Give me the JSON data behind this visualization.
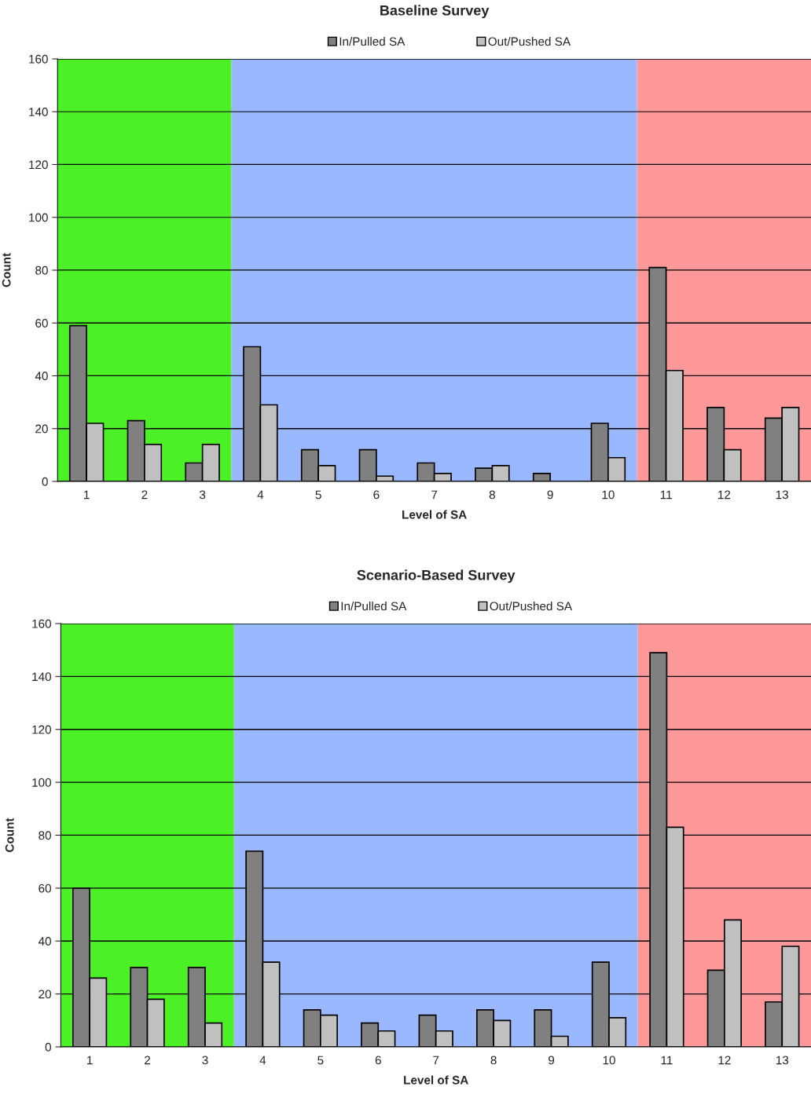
{
  "chart_data": [
    {
      "type": "bar",
      "title": "Baseline Survey",
      "xlabel": "Level of SA",
      "ylabel": "Count",
      "categories": [
        "1",
        "2",
        "3",
        "4",
        "5",
        "6",
        "7",
        "8",
        "9",
        "10",
        "11",
        "12",
        "13"
      ],
      "series": [
        {
          "name": "In/Pulled SA",
          "color": "#808080",
          "values": [
            59,
            23,
            7,
            51,
            12,
            12,
            7,
            5,
            3,
            22,
            81,
            28,
            24
          ]
        },
        {
          "name": "Out/Pushed SA",
          "color": "#c0c0c0",
          "values": [
            22,
            14,
            14,
            29,
            6,
            2,
            3,
            6,
            null,
            9,
            42,
            12,
            28
          ]
        }
      ],
      "ylim": [
        0,
        160
      ],
      "yticks": [
        0,
        20,
        40,
        60,
        80,
        100,
        120,
        140,
        160
      ],
      "grid": "y",
      "legend": "top",
      "bands": [
        {
          "axis": "x",
          "from": "1",
          "to": "3",
          "color": "#4cf026"
        },
        {
          "axis": "x",
          "from": "4",
          "to": "10",
          "color": "#99b8ff"
        },
        {
          "axis": "x",
          "from": "11",
          "to": "13",
          "color": "#ff9999"
        }
      ]
    },
    {
      "type": "bar",
      "title": "Scenario-Based Survey",
      "xlabel": "Level of SA",
      "ylabel": "Count",
      "categories": [
        "1",
        "2",
        "3",
        "4",
        "5",
        "6",
        "7",
        "8",
        "9",
        "10",
        "11",
        "12",
        "13"
      ],
      "series": [
        {
          "name": "In/Pulled SA",
          "color": "#808080",
          "values": [
            60,
            30,
            30,
            74,
            14,
            9,
            12,
            14,
            14,
            32,
            149,
            29,
            17
          ]
        },
        {
          "name": "Out/Pushed SA",
          "color": "#c0c0c0",
          "values": [
            26,
            18,
            9,
            32,
            12,
            6,
            6,
            10,
            4,
            11,
            83,
            48,
            38
          ]
        }
      ],
      "ylim": [
        0,
        160
      ],
      "yticks": [
        0,
        20,
        40,
        60,
        80,
        100,
        120,
        140,
        160
      ],
      "grid": "y",
      "legend": "top",
      "bands": [
        {
          "axis": "x",
          "from": "1",
          "to": "3",
          "color": "#4cf026"
        },
        {
          "axis": "x",
          "from": "4",
          "to": "10",
          "color": "#99b8ff"
        },
        {
          "axis": "x",
          "from": "11",
          "to": "13",
          "color": "#ff9999"
        }
      ]
    }
  ]
}
